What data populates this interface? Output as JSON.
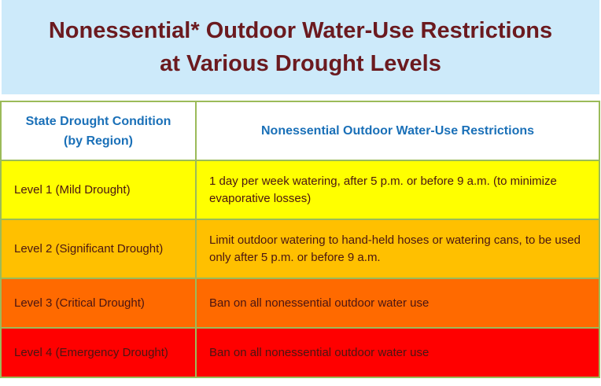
{
  "title": {
    "line1": "Nonessential* Outdoor Water-Use Restrictions",
    "line2": "at Various Drought Levels"
  },
  "table": {
    "headers": {
      "condition_line1": "State Drought Condition",
      "condition_line2": "(by Region)",
      "restrictions": "Nonessential Outdoor Water-Use Restrictions"
    },
    "rows": [
      {
        "level": "Level 1 (Mild Drought)",
        "restriction": "1 day per week watering, after 5 p.m. or before 9 a.m. (to minimize evaporative losses)",
        "color": "#ffff00"
      },
      {
        "level": "Level 2 (Significant Drought)",
        "restriction": "Limit outdoor watering to hand-held hoses or watering cans, to be used only after 5 p.m. or before 9 a.m.",
        "color": "#ffc000"
      },
      {
        "level": "Level 3 (Critical Drought)",
        "restriction": "Ban on all nonessential outdoor water use",
        "color": "#ff6a00"
      },
      {
        "level": "Level 4 (Emergency Drought)",
        "restriction": "Ban on all nonessential outdoor water use",
        "color": "#ff0000"
      }
    ]
  }
}
